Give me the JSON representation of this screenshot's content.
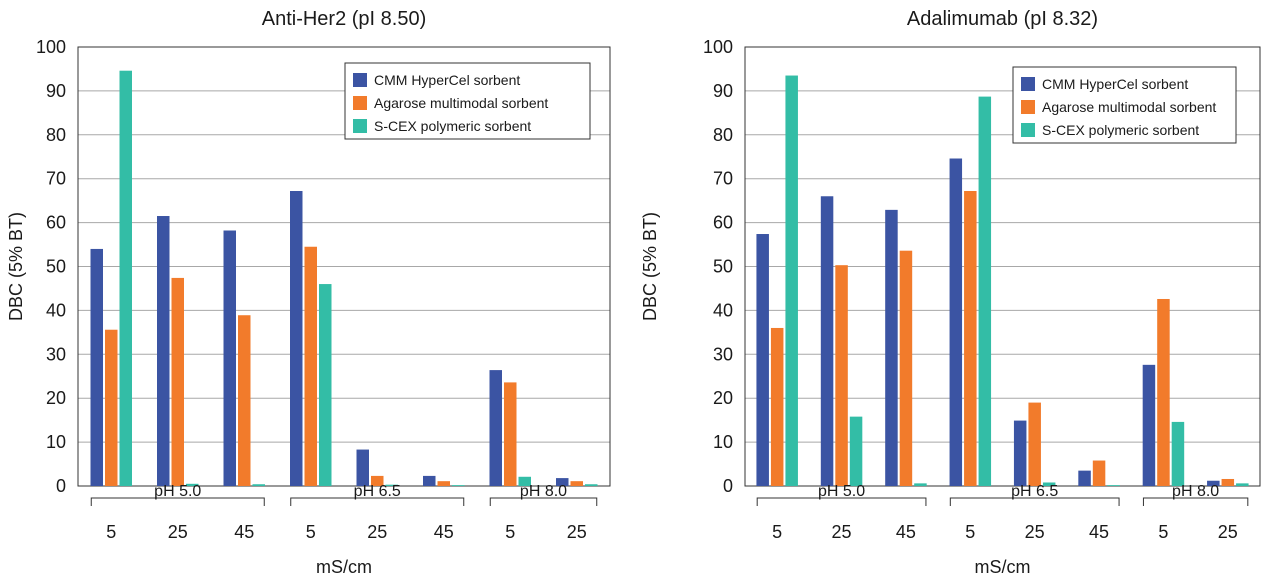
{
  "chart_data": [
    {
      "type": "bar",
      "title": "Anti-Her2 (pI 8.50)",
      "ylabel": "DBC (5% BT)",
      "xlabel": "mS/cm",
      "ylim": [
        0,
        100
      ],
      "yticks": [
        0,
        10,
        20,
        30,
        40,
        50,
        60,
        70,
        80,
        90,
        100
      ],
      "grid": "horizontal",
      "legend_position": "top-right",
      "categories": [
        "5",
        "25",
        "45",
        "5",
        "25",
        "45",
        "5",
        "25"
      ],
      "groups": [
        {
          "label": "pH 5.0",
          "categories": [
            "5",
            "25",
            "45"
          ]
        },
        {
          "label": "pH 6.5",
          "categories": [
            "5",
            "25",
            "45"
          ]
        },
        {
          "label": "pH 8.0",
          "categories": [
            "5",
            "25"
          ]
        }
      ],
      "series": [
        {
          "name": "CMM HyperCel sorbent",
          "color": "#3b54a3",
          "values": [
            54,
            61.5,
            58.2,
            67.2,
            8.3,
            2.3,
            26.4,
            1.8
          ]
        },
        {
          "name": "Agarose multimodal sorbent",
          "color": "#f27b2b",
          "values": [
            35.6,
            47.4,
            38.9,
            54.5,
            2.3,
            1.1,
            23.6,
            1.1
          ]
        },
        {
          "name": "S-CEX polymeric sorbent",
          "color": "#33bda6",
          "values": [
            94.6,
            0.5,
            0.4,
            46,
            0.3,
            0.2,
            2.1,
            0.4
          ]
        }
      ]
    },
    {
      "type": "bar",
      "title": "Adalimumab (pI 8.32)",
      "ylabel": "DBC (5% BT)",
      "xlabel": "mS/cm",
      "ylim": [
        0,
        100
      ],
      "yticks": [
        0,
        10,
        20,
        30,
        40,
        50,
        60,
        70,
        80,
        90,
        100
      ],
      "grid": "horizontal",
      "legend_position": "top-right",
      "categories": [
        "5",
        "25",
        "45",
        "5",
        "25",
        "45",
        "5",
        "25"
      ],
      "groups": [
        {
          "label": "pH 5.0",
          "categories": [
            "5",
            "25",
            "45"
          ]
        },
        {
          "label": "pH 6.5",
          "categories": [
            "5",
            "25",
            "45"
          ]
        },
        {
          "label": "pH 8.0",
          "categories": [
            "5",
            "25"
          ]
        }
      ],
      "series": [
        {
          "name": "CMM HyperCel sorbent",
          "color": "#3b54a3",
          "values": [
            57.4,
            66,
            62.9,
            74.6,
            14.9,
            3.5,
            27.6,
            1.2
          ]
        },
        {
          "name": "Agarose multimodal sorbent",
          "color": "#f27b2b",
          "values": [
            36,
            50.3,
            53.6,
            67.2,
            19,
            5.8,
            42.6,
            1.6
          ]
        },
        {
          "name": "S-CEX polymeric sorbent",
          "color": "#33bda6",
          "values": [
            93.5,
            15.8,
            0.6,
            88.7,
            0.8,
            0.2,
            14.6,
            0.6
          ]
        }
      ]
    }
  ]
}
